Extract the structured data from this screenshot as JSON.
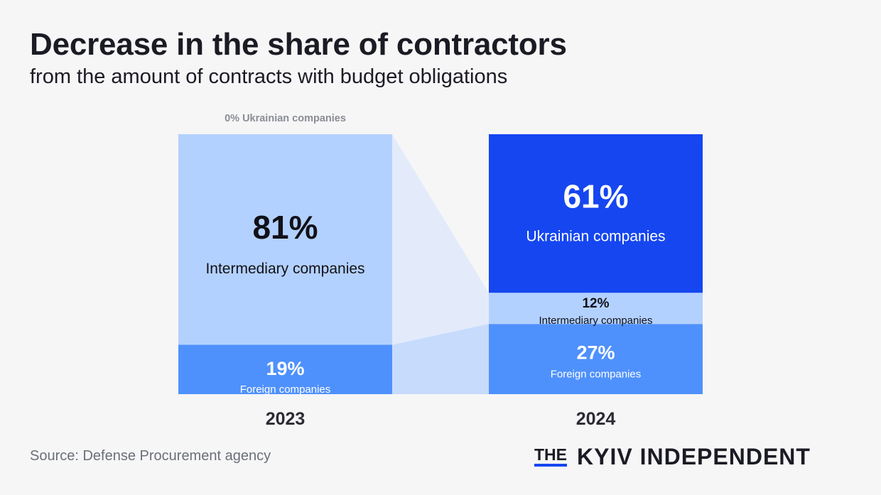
{
  "header": {
    "title": "Decrease in the share of contractors",
    "subtitle": "from the amount of contracts with budget obligations"
  },
  "chart_data": {
    "type": "bar",
    "stacked": true,
    "categories": [
      "2023",
      "2024"
    ],
    "series": [
      {
        "name": "Ukrainian companies",
        "values": [
          0,
          61
        ],
        "labels": [
          "0% Ukrainian companies",
          "61%"
        ],
        "color": "#1546f0"
      },
      {
        "name": "Intermediary companies",
        "values": [
          81,
          12
        ],
        "labels": [
          "81%",
          "12%"
        ],
        "color": "#b3d1ff"
      },
      {
        "name": "Foreign companies",
        "values": [
          19,
          27
        ],
        "labels": [
          "19%",
          "27%"
        ],
        "color": "#4f91fc"
      }
    ],
    "unit": "%",
    "ylim": [
      0,
      100
    ]
  },
  "footer": {
    "source": "Source: Defense Procurement agency",
    "logo_the": "THE",
    "logo_name": "KYIV INDEPENDENT"
  }
}
